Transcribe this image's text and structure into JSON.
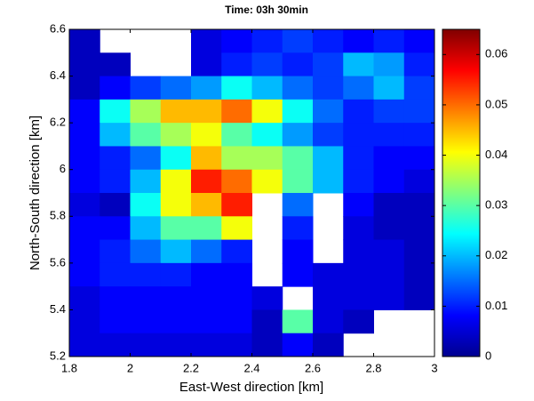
{
  "chart_data": {
    "type": "heatmap",
    "title": "Time: 03h 30min",
    "x_label": "East-West direction [km]",
    "y_label": "North-South direction [km]",
    "xlim": [
      1.8,
      3
    ],
    "ylim": [
      5.2,
      6.6
    ],
    "xticks": [
      1.8,
      2,
      2.2,
      2.4,
      2.6,
      2.8,
      3
    ],
    "yticks": [
      5.2,
      5.4,
      5.6,
      5.8,
      6,
      6.2,
      6.4,
      6.6
    ],
    "x": [
      1.85,
      1.95,
      2.05,
      2.15,
      2.25,
      2.35,
      2.45,
      2.55,
      2.65,
      2.75,
      2.85,
      2.95
    ],
    "y": [
      6.55,
      6.45,
      6.35,
      6.25,
      6.15,
      6.05,
      5.95,
      5.85,
      5.75,
      5.65,
      5.55,
      5.45,
      5.35,
      5.25
    ],
    "values": [
      [
        0.004,
        null,
        null,
        null,
        0.006,
        0.008,
        0.01,
        0.012,
        0.01,
        0.008,
        0.01,
        0.008
      ],
      [
        0.004,
        0.004,
        null,
        null,
        0.006,
        0.01,
        0.012,
        0.01,
        0.012,
        0.02,
        0.018,
        0.01
      ],
      [
        0.004,
        0.008,
        0.012,
        0.015,
        0.018,
        0.025,
        0.02,
        0.015,
        0.012,
        0.015,
        0.02,
        0.012
      ],
      [
        0.008,
        0.025,
        0.035,
        0.045,
        0.045,
        0.05,
        0.04,
        0.025,
        0.015,
        0.01,
        0.012,
        0.012
      ],
      [
        0.008,
        0.02,
        0.03,
        0.035,
        0.04,
        0.03,
        0.025,
        0.018,
        0.012,
        0.01,
        0.01,
        0.01
      ],
      [
        0.008,
        0.01,
        0.015,
        0.025,
        0.045,
        0.035,
        0.035,
        0.03,
        0.02,
        0.01,
        0.008,
        0.008
      ],
      [
        0.008,
        0.01,
        0.02,
        0.04,
        0.055,
        0.05,
        0.04,
        0.03,
        0.02,
        0.01,
        0.008,
        0.006
      ],
      [
        0.006,
        0.004,
        0.025,
        0.04,
        0.045,
        0.055,
        null,
        0.015,
        null,
        0.008,
        0.004,
        0.004
      ],
      [
        0.008,
        0.008,
        0.02,
        0.03,
        0.03,
        0.04,
        null,
        0.01,
        null,
        0.006,
        0.004,
        0.004
      ],
      [
        0.008,
        0.01,
        0.015,
        0.02,
        0.015,
        0.01,
        null,
        0.008,
        null,
        0.006,
        0.006,
        0.004
      ],
      [
        0.008,
        0.01,
        0.01,
        0.01,
        0.008,
        0.008,
        null,
        0.008,
        0.006,
        0.006,
        0.006,
        0.004
      ],
      [
        0.006,
        0.008,
        0.008,
        0.008,
        0.008,
        0.008,
        0.006,
        null,
        0.006,
        0.006,
        0.006,
        0.004
      ],
      [
        0.006,
        0.008,
        0.008,
        0.008,
        0.008,
        0.008,
        0.004,
        0.03,
        0.006,
        0.004,
        null,
        null
      ],
      [
        0.006,
        0.006,
        0.006,
        0.006,
        0.006,
        0.006,
        0.004,
        0.008,
        0.004,
        null,
        null,
        null
      ]
    ],
    "colormap": "jet",
    "clim": [
      0,
      0.065
    ],
    "cticks": [
      0,
      0.01,
      0.02,
      0.03,
      0.04,
      0.05,
      0.06
    ]
  }
}
